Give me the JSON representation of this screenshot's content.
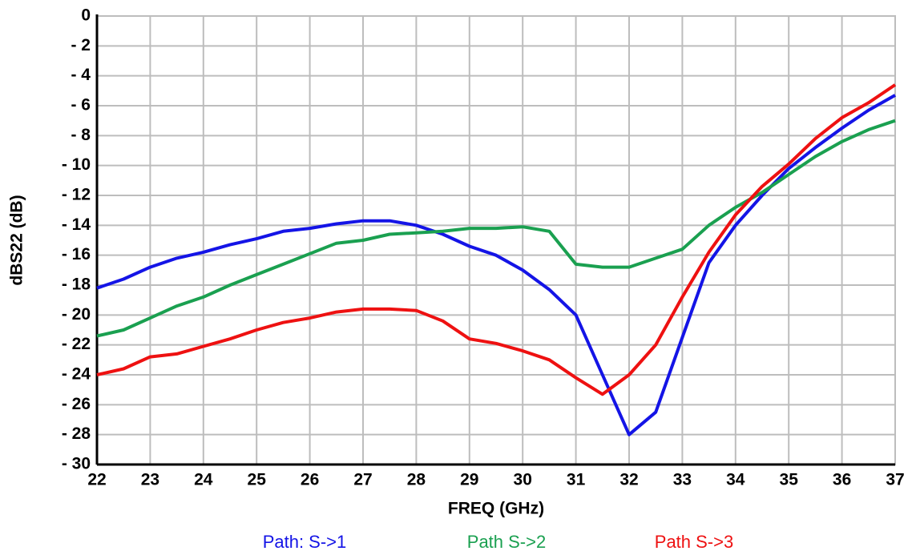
{
  "chart_data": {
    "type": "line",
    "x_label": "FREQ (GHz)",
    "y_label": "dBS22 (dB)",
    "x": [
      22,
      22.5,
      23,
      23.5,
      24,
      24.5,
      25,
      25.5,
      26,
      26.5,
      27,
      27.5,
      28,
      28.5,
      29,
      29.5,
      30,
      30.5,
      31,
      31.5,
      32,
      32.5,
      33,
      33.5,
      34,
      34.5,
      35,
      35.5,
      36,
      36.5,
      37
    ],
    "series": [
      {
        "name": "Path: S->1",
        "color": "#1414e6",
        "values": [
          -18.2,
          -17.6,
          -16.8,
          -16.2,
          -15.8,
          -15.3,
          -14.9,
          -14.4,
          -14.2,
          -13.9,
          -13.7,
          -13.7,
          -14.0,
          -14.6,
          -15.4,
          -16.0,
          -17.0,
          -18.3,
          -20.0,
          -24.0,
          -28.0,
          -26.5,
          -21.5,
          -16.5,
          -14.0,
          -12.0,
          -10.2,
          -8.8,
          -7.5,
          -6.3,
          -5.3
        ]
      },
      {
        "name": "Path S->2",
        "color": "#1aa050",
        "values": [
          -21.4,
          -21.0,
          -20.2,
          -19.4,
          -18.8,
          -18.0,
          -17.3,
          -16.6,
          -15.9,
          -15.2,
          -15.0,
          -14.6,
          -14.5,
          -14.4,
          -14.2,
          -14.2,
          -14.1,
          -14.4,
          -16.6,
          -16.8,
          -16.8,
          -16.2,
          -15.6,
          -14.0,
          -12.8,
          -11.8,
          -10.6,
          -9.4,
          -8.4,
          -7.6,
          -7.0
        ]
      },
      {
        "name": "Path S->3",
        "color": "#ee1111",
        "values": [
          -24.0,
          -23.6,
          -22.8,
          -22.6,
          -22.1,
          -21.6,
          -21.0,
          -20.5,
          -20.2,
          -19.8,
          -19.6,
          -19.6,
          -19.7,
          -20.4,
          -21.6,
          -21.9,
          -22.4,
          -23.0,
          -24.2,
          -25.3,
          -24.0,
          -22.0,
          -18.8,
          -15.8,
          -13.3,
          -11.4,
          -9.9,
          -8.2,
          -6.8,
          -5.8,
          -4.6
        ]
      }
    ],
    "xlim": [
      22,
      37
    ],
    "ylim": [
      -30,
      0
    ],
    "xticks": [
      22,
      23,
      24,
      25,
      26,
      27,
      28,
      29,
      30,
      31,
      32,
      33,
      34,
      35,
      36,
      37
    ],
    "yticks": [
      0,
      {
        "value": -2,
        "label": "- 2"
      },
      {
        "value": -4,
        "label": "- 4"
      },
      {
        "value": -6,
        "label": "- 6"
      },
      {
        "value": -8,
        "label": "- 8"
      },
      {
        "value": -10,
        "label": "- 10"
      },
      {
        "value": -12,
        "label": "- 12"
      },
      {
        "value": -14,
        "label": "- 14"
      },
      {
        "value": -16,
        "label": "- 16"
      },
      {
        "value": -18,
        "label": "- 18"
      },
      {
        "value": -20,
        "label": "- 20"
      },
      {
        "value": -22,
        "label": "- 22"
      },
      {
        "value": -24,
        "label": "- 24"
      },
      {
        "value": -26,
        "label": "- 26"
      },
      {
        "value": -28,
        "label": "- 28"
      },
      {
        "value": -30,
        "label": "- 30"
      }
    ],
    "grid": true
  }
}
